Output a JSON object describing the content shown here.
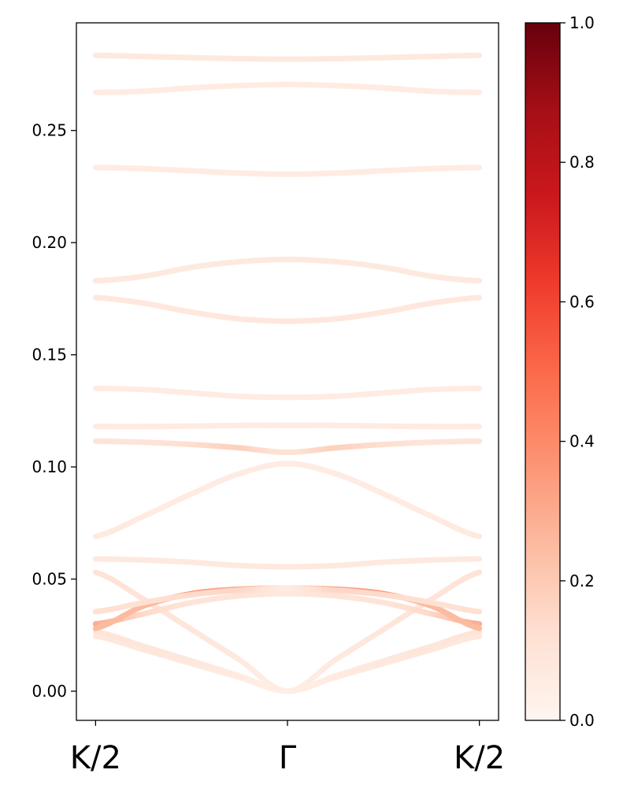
{
  "chart_data": {
    "type": "line",
    "title": "",
    "xlabel": "",
    "ylabel": "",
    "x_tick_labels": [
      "K/2",
      "Γ",
      "K/2"
    ],
    "y_ticks": [
      0.0,
      0.05,
      0.1,
      0.15,
      0.2,
      0.25
    ],
    "y_tick_labels": [
      "0.00",
      "0.05",
      "0.10",
      "0.15",
      "0.20",
      "0.25"
    ],
    "xlim": [
      -0.1,
      2.1
    ],
    "ylim": [
      -0.013,
      0.298
    ],
    "grid": false,
    "colormap": "Reds",
    "colorbar": {
      "range": [
        0.0,
        1.0
      ],
      "ticks": [
        0.0,
        0.2,
        0.4,
        0.6,
        0.8,
        1.0
      ],
      "tick_labels": [
        "0.0",
        "0.2",
        "0.4",
        "0.6",
        "0.8",
        "1.0"
      ]
    },
    "x": [
      0,
      0.25,
      0.5,
      0.75,
      1.0,
      1.25,
      1.5,
      1.75,
      2.0
    ],
    "series": [
      {
        "values": [
          0.0245,
          0.0185,
          0.0123,
          0.0062,
          0.0,
          0.0062,
          0.0123,
          0.0185,
          0.0245
        ],
        "weights": [
          0.08,
          0.08,
          0.07,
          0.06,
          0.04,
          0.06,
          0.07,
          0.08,
          0.08
        ]
      },
      {
        "values": [
          0.0265,
          0.02,
          0.0135,
          0.0068,
          0.0,
          0.0068,
          0.0135,
          0.02,
          0.0265
        ],
        "weights": [
          0.1,
          0.09,
          0.08,
          0.06,
          0.04,
          0.06,
          0.08,
          0.09,
          0.1
        ]
      },
      {
        "values": [
          0.053,
          0.041,
          0.0275,
          0.014,
          0.0,
          0.014,
          0.0275,
          0.041,
          0.053
        ],
        "weights": [
          0.1,
          0.1,
          0.09,
          0.07,
          0.04,
          0.07,
          0.09,
          0.1,
          0.1
        ]
      },
      {
        "values": [
          0.03,
          0.0345,
          0.0395,
          0.0425,
          0.0435,
          0.0425,
          0.0395,
          0.0345,
          0.03
        ],
        "weights": [
          0.3,
          0.15,
          0.1,
          0.1,
          0.08,
          0.1,
          0.1,
          0.15,
          0.3
        ]
      },
      {
        "values": [
          0.028,
          0.038,
          0.0435,
          0.0455,
          0.046,
          0.0455,
          0.0435,
          0.038,
          0.028
        ],
        "weights": [
          0.25,
          0.25,
          0.35,
          0.3,
          0.05,
          0.3,
          0.35,
          0.25,
          0.25
        ]
      },
      {
        "values": [
          0.0355,
          0.0395,
          0.043,
          0.045,
          0.0455,
          0.045,
          0.043,
          0.0395,
          0.0355
        ],
        "weights": [
          0.12,
          0.12,
          0.14,
          0.16,
          0.05,
          0.16,
          0.14,
          0.12,
          0.12
        ]
      },
      {
        "values": [
          0.059,
          0.0585,
          0.0575,
          0.056,
          0.0555,
          0.056,
          0.0575,
          0.0585,
          0.059
        ],
        "weights": [
          0.07,
          0.07,
          0.07,
          0.07,
          0.07,
          0.07,
          0.07,
          0.07,
          0.07
        ]
      },
      {
        "values": [
          0.069,
          0.078,
          0.088,
          0.097,
          0.1015,
          0.097,
          0.088,
          0.078,
          0.069
        ],
        "weights": [
          0.07,
          0.06,
          0.06,
          0.06,
          0.06,
          0.06,
          0.06,
          0.06,
          0.07
        ]
      },
      {
        "values": [
          0.1115,
          0.111,
          0.11,
          0.1085,
          0.1065,
          0.1085,
          0.11,
          0.111,
          0.1115
        ],
        "weights": [
          0.1,
          0.1,
          0.13,
          0.18,
          0.1,
          0.18,
          0.13,
          0.1,
          0.1
        ]
      },
      {
        "values": [
          0.118,
          0.118,
          0.1182,
          0.1185,
          0.1185,
          0.1185,
          0.1182,
          0.118,
          0.118
        ],
        "weights": [
          0.06,
          0.06,
          0.06,
          0.06,
          0.06,
          0.06,
          0.06,
          0.06,
          0.06
        ]
      },
      {
        "values": [
          0.135,
          0.1345,
          0.133,
          0.1315,
          0.131,
          0.1315,
          0.133,
          0.1345,
          0.135
        ],
        "weights": [
          0.06,
          0.06,
          0.06,
          0.06,
          0.06,
          0.06,
          0.06,
          0.06,
          0.06
        ]
      },
      {
        "values": [
          0.1755,
          0.173,
          0.169,
          0.166,
          0.165,
          0.166,
          0.169,
          0.173,
          0.1755
        ],
        "weights": [
          0.08,
          0.08,
          0.08,
          0.08,
          0.08,
          0.08,
          0.08,
          0.08,
          0.08
        ]
      },
      {
        "values": [
          0.183,
          0.185,
          0.189,
          0.1915,
          0.1925,
          0.1915,
          0.189,
          0.185,
          0.183
        ],
        "weights": [
          0.07,
          0.07,
          0.07,
          0.07,
          0.07,
          0.07,
          0.07,
          0.07,
          0.07
        ]
      },
      {
        "values": [
          0.2335,
          0.233,
          0.232,
          0.231,
          0.2305,
          0.231,
          0.232,
          0.233,
          0.2335
        ],
        "weights": [
          0.06,
          0.06,
          0.06,
          0.06,
          0.06,
          0.06,
          0.06,
          0.06,
          0.06
        ]
      },
      {
        "values": [
          0.267,
          0.2675,
          0.269,
          0.27,
          0.2705,
          0.27,
          0.269,
          0.2675,
          0.267
        ],
        "weights": [
          0.06,
          0.06,
          0.06,
          0.06,
          0.06,
          0.06,
          0.06,
          0.06,
          0.06
        ]
      },
      {
        "values": [
          0.2835,
          0.283,
          0.2825,
          0.282,
          0.2818,
          0.282,
          0.2825,
          0.283,
          0.2835
        ],
        "weights": [
          0.07,
          0.07,
          0.07,
          0.07,
          0.07,
          0.07,
          0.07,
          0.07,
          0.07
        ]
      }
    ]
  }
}
